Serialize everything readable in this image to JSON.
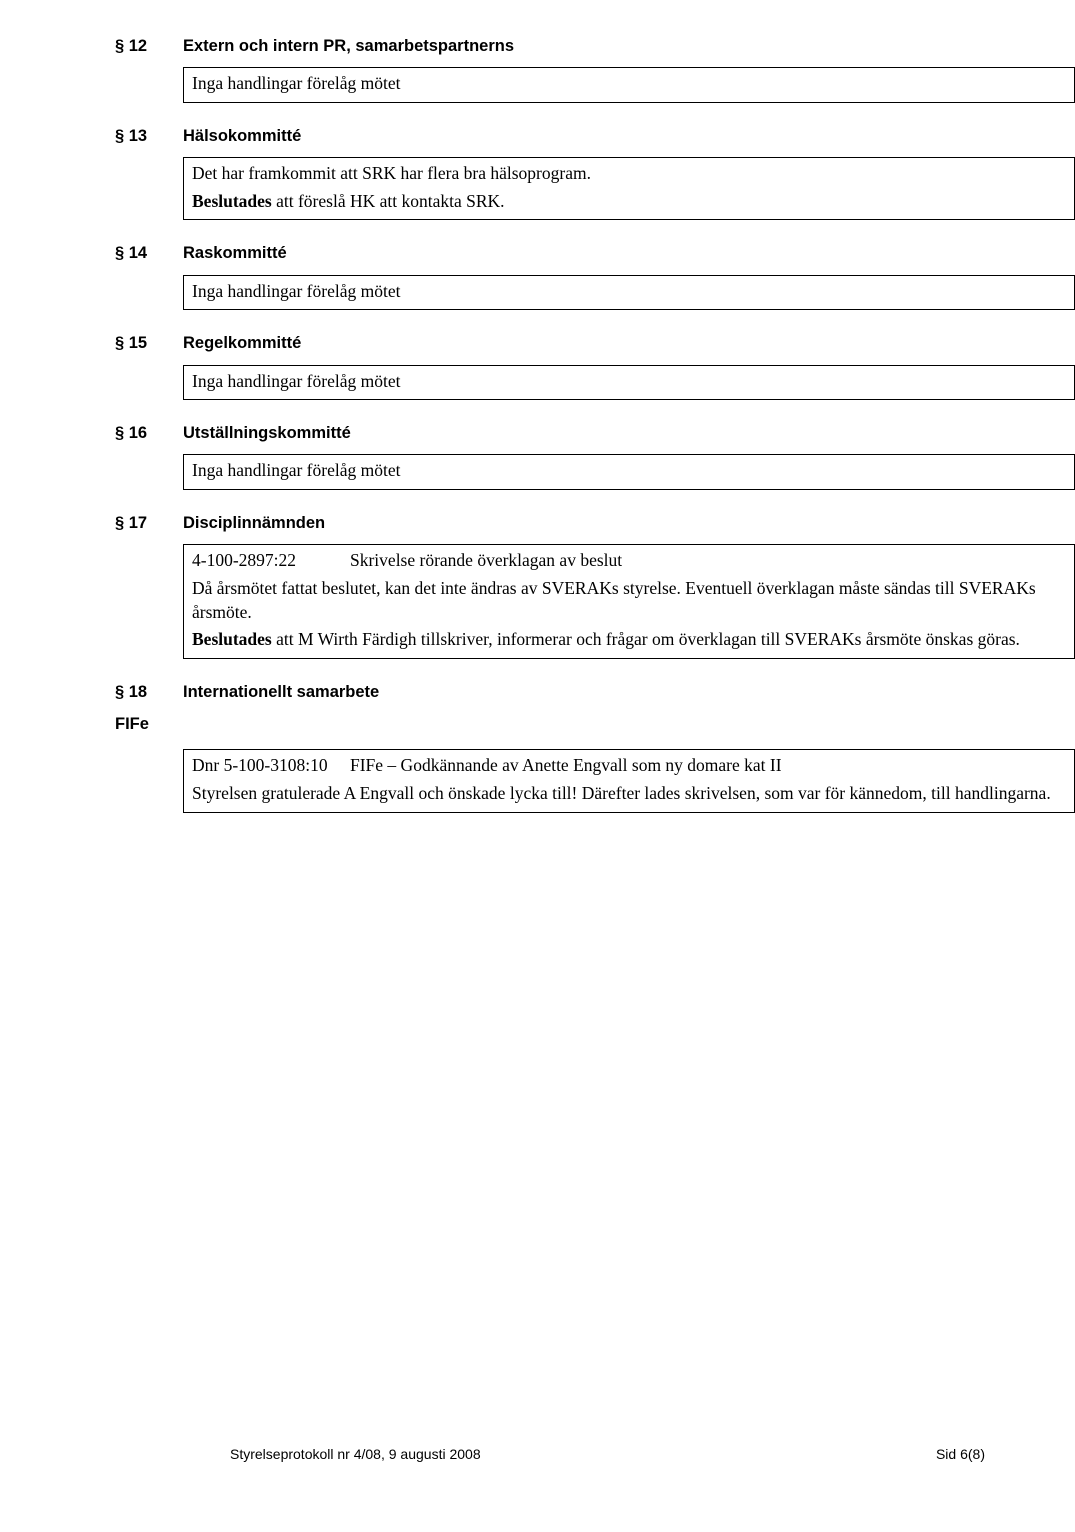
{
  "sections": [
    {
      "num": "§ 12",
      "title": "Extern och intern PR, samarbetspartnerns",
      "boxes": [
        {
          "lines": [
            {
              "text": "Inga handlingar förelåg mötet"
            }
          ]
        }
      ]
    },
    {
      "num": "§ 13",
      "title": "Hälsokommitté",
      "boxes": [
        {
          "lines": [
            {
              "text": "Det har framkommit att SRK har flera bra hälsoprogram."
            },
            {
              "bold_prefix": "Beslutades",
              "rest": " att föreslå HK att kontakta SRK."
            }
          ]
        }
      ]
    },
    {
      "num": "§ 14",
      "title": "Raskommitté",
      "boxes": [
        {
          "lines": [
            {
              "text": "Inga handlingar förelåg mötet"
            }
          ]
        }
      ]
    },
    {
      "num": "§ 15",
      "title": "Regelkommitté",
      "boxes": [
        {
          "lines": [
            {
              "text": "Inga handlingar förelåg mötet"
            }
          ]
        }
      ]
    },
    {
      "num": "§ 16",
      "title": "Utställningskommitté",
      "boxes": [
        {
          "lines": [
            {
              "text": "Inga handlingar förelåg mötet"
            }
          ]
        }
      ]
    },
    {
      "num": "§ 17",
      "title": "Disciplinnämnden",
      "boxes": [
        {
          "lines": [
            {
              "dnr_left": "4-100-2897:22",
              "dnr_right": "Skrivelse rörande överklagan av beslut"
            },
            {
              "text": "Då årsmötet fattat beslutet, kan det inte ändras av SVERAKs styrelse. Eventuell överklagan måste sändas till SVERAKs årsmöte."
            },
            {
              "bold_prefix": "Beslutades",
              "rest": " att M Wirth Färdigh tillskriver, informerar och frågar om överklagan till SVERAKs årsmöte önskas göras."
            }
          ]
        }
      ]
    },
    {
      "num": "§ 18",
      "title": "Internationellt samarbete",
      "fife_label": "FIFe",
      "boxes": [
        {
          "lines": [
            {
              "dnr_left": "Dnr 5-100-3108:10",
              "dnr_right": "FIFe – Godkännande av Anette Engvall som ny domare kat II"
            },
            {
              "text": "Styrelsen gratulerade A Engvall och önskade lycka till! Därefter lades skrivelsen, som var för kännedom, till handlingarna."
            }
          ]
        }
      ]
    }
  ],
  "footer": {
    "left": "Styrelseprotokoll nr 4/08, 9 augusti 2008",
    "right": "Sid 6(8)"
  }
}
